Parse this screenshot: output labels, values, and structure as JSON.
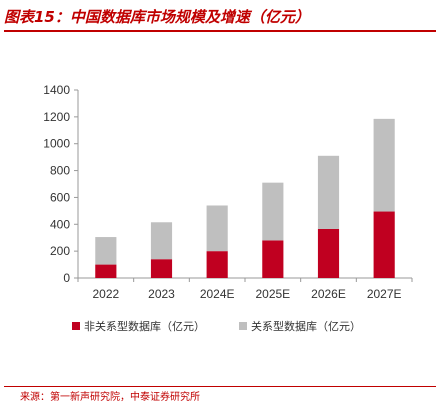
{
  "header": {
    "title": "图表15：中国数据库市场规模及增速（亿元）"
  },
  "chart_data": {
    "type": "bar",
    "stacked": true,
    "categories": [
      "2022",
      "2023",
      "2024E",
      "2025E",
      "2026E",
      "2027E"
    ],
    "series": [
      {
        "name": "非关系型数据库（亿元）",
        "values": [
          100,
          140,
          200,
          280,
          365,
          495
        ],
        "color": "#c00020"
      },
      {
        "name": "关系型数据库（亿元）",
        "values": [
          205,
          275,
          340,
          430,
          545,
          690
        ],
        "color": "#bfbfbf"
      }
    ],
    "yticks": [
      "0",
      "200",
      "400",
      "600",
      "800",
      "1000",
      "1200",
      "1400"
    ],
    "ylim": [
      0,
      1400
    ],
    "grid": false,
    "legend_position": "bottom"
  },
  "footer": {
    "source": "来源：第一新声研究院，中泰证券研究所"
  }
}
